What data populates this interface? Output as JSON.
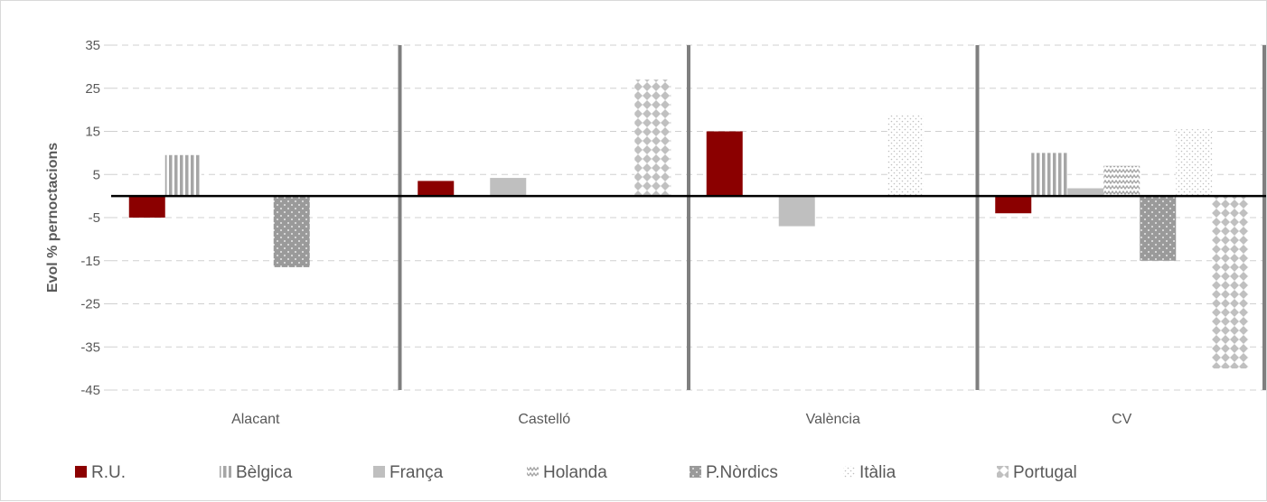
{
  "chart_data": {
    "type": "bar",
    "ylabel": "Evol % pernoctacions",
    "xlabel": "",
    "ylim": [
      -45,
      35
    ],
    "yticks": [
      35,
      25,
      15,
      5,
      -5,
      -15,
      -25,
      -35,
      -45
    ],
    "ytick_labels": [
      "35",
      "25",
      "15",
      "5",
      "-5",
      "-15",
      "-25",
      "-35",
      "-45"
    ],
    "grid": true,
    "legend_position": "bottom",
    "categories": [
      "Alacant",
      "Castelló",
      "València",
      "CV"
    ],
    "series": [
      {
        "name": "R.U.",
        "color": "#8b0000",
        "pattern": "solid",
        "values": [
          -5,
          3.5,
          15,
          -4
        ]
      },
      {
        "name": "Bèlgica",
        "color": "#a6a6a6",
        "pattern": "vertical-stripes",
        "values": [
          9.5,
          null,
          null,
          10
        ]
      },
      {
        "name": "França",
        "color": "#bfbfbf",
        "pattern": "solid",
        "values": [
          null,
          4.2,
          -7,
          1.8
        ]
      },
      {
        "name": "Holanda",
        "color": "#bfbfbf",
        "pattern": "zigzag",
        "values": [
          null,
          null,
          null,
          7
        ]
      },
      {
        "name": "P.Nòrdics",
        "color": "#a6a6a6",
        "pattern": "dots-on-dark",
        "values": [
          -16.5,
          null,
          null,
          -15
        ]
      },
      {
        "name": "Itàlia",
        "color": "#d9d9d9",
        "pattern": "light-dots",
        "values": [
          null,
          null,
          19,
          15.5
        ]
      },
      {
        "name": "Portugal",
        "color": "#bfbfbf",
        "pattern": "diamonds",
        "values": [
          null,
          27,
          null,
          -40
        ]
      }
    ]
  }
}
